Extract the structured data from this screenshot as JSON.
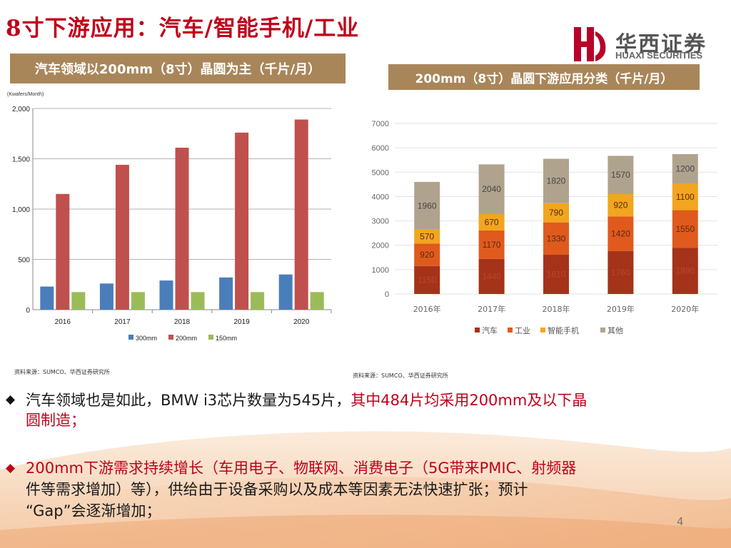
{
  "title": "8寸下游应用：汽车/智能手机/工业",
  "logo": {
    "cn": "华西证券",
    "en": "HUAXI SECURITIES",
    "color": "#b8002a"
  },
  "left_panel": {
    "header": "汽车领域以200mm（8寸）晶圆为主（千片/月）",
    "source": "资料来源：SUMCO、华西证券研究所"
  },
  "right_panel": {
    "header": "200mm（8寸）晶圆下游应用分类（千片/月）",
    "source": "资料来源：SUMCO、华西证券研究所"
  },
  "chart_data": [
    {
      "type": "bar",
      "ylabel": "(Kwafers/Month)",
      "categories": [
        "2016",
        "2017",
        "2018",
        "2019",
        "2020"
      ],
      "ylim": [
        0,
        2000
      ],
      "yticks": [
        0,
        500,
        1000,
        1500,
        2000
      ],
      "ytick_labels": [
        "0",
        "500",
        "1,000",
        "1,500",
        "2,000"
      ],
      "grid": true,
      "legend": "bottom",
      "series": [
        {
          "name": "300mm",
          "color": "#4a7ebb",
          "values": [
            230,
            260,
            290,
            320,
            350
          ]
        },
        {
          "name": "200mm",
          "color": "#c0504d",
          "values": [
            1150,
            1440,
            1610,
            1760,
            1890
          ]
        },
        {
          "name": "150mm",
          "color": "#9bbb59",
          "values": [
            175,
            175,
            175,
            175,
            175
          ]
        }
      ]
    },
    {
      "type": "bar",
      "stacked": true,
      "categories": [
        "2016年",
        "2017年",
        "2018年",
        "2019年",
        "2020年"
      ],
      "ylim": [
        0,
        7000
      ],
      "yticks": [
        0,
        1000,
        2000,
        3000,
        4000,
        5000,
        6000,
        7000
      ],
      "ytick_labels": [
        "0",
        "1000",
        "2000",
        "3000",
        "4000",
        "5000",
        "6000",
        "7000"
      ],
      "grid": true,
      "legend": "bottom",
      "series": [
        {
          "name": "汽车",
          "color": "#a5331a",
          "values": [
            1150,
            1440,
            1610,
            1760,
            1890
          ],
          "labels": [
            "1150",
            "1440",
            "1610",
            "1760",
            "1890"
          ]
        },
        {
          "name": "工业",
          "color": "#e05a1e",
          "values": [
            920,
            1170,
            1330,
            1420,
            1550
          ],
          "labels": [
            "920",
            "1170",
            "1330",
            "1420",
            "1550"
          ]
        },
        {
          "name": "智能手机",
          "color": "#f2a51e",
          "values": [
            570,
            670,
            790,
            920,
            1100
          ],
          "labels": [
            "570",
            "670",
            "790",
            "920",
            "1100"
          ]
        },
        {
          "name": "其他",
          "color": "#b0a38e",
          "values": [
            1960,
            2040,
            1820,
            1570,
            1200
          ],
          "labels": [
            "1960",
            "2040",
            "1820",
            "1570",
            "1200"
          ]
        }
      ]
    }
  ],
  "bullets": [
    {
      "line1_black": "汽车领域也是如此，BMW i3芯片数量为545片，",
      "line1_red": "其中484片均采用200mm及以下晶",
      "line2_red": "圆制造；"
    },
    {
      "line1": "200mm下游需求持续增长（车用电子、物联网、消费电子（5G带来PMIC、射频器",
      "line2": "件等需求增加）等），供给由于设备采购以及成本等因素无法快速扩张；预计",
      "line3": "“Gap”会逐渐增加；"
    }
  ],
  "page_number": "4"
}
